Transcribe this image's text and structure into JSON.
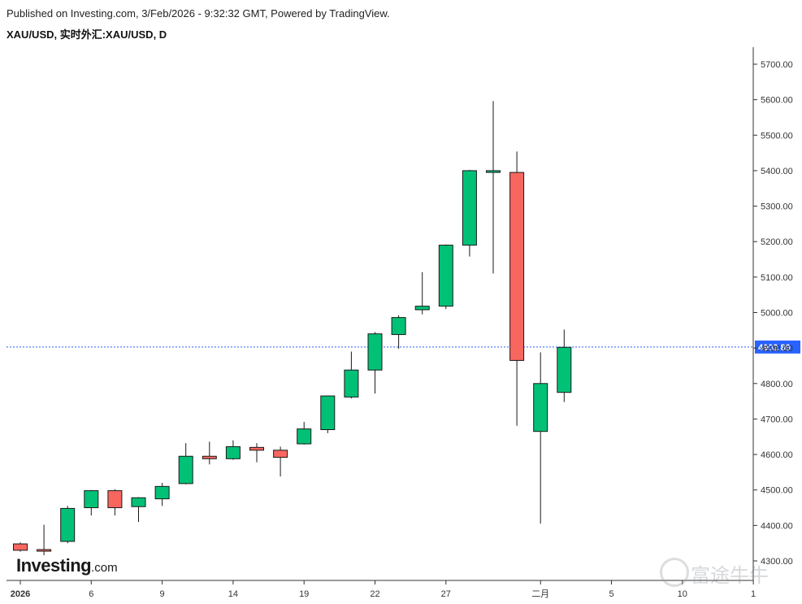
{
  "header": {
    "published": "Published on Investing.com, 3/Feb/2026 - 9:32:32 GMT, Powered by TradingView.",
    "symbol": "XAU/USD, 实时外汇:XAU/USD, D"
  },
  "logo": {
    "brand": "Investing",
    "suffix": ".com"
  },
  "watermark": {
    "text": "富途牛牛"
  },
  "chart_data": {
    "type": "candlestick",
    "y_axis": {
      "ticks": [
        4300,
        4400,
        4500,
        4600,
        4700,
        4800,
        4900,
        5000,
        5100,
        5200,
        5300,
        5400,
        5500,
        5600,
        5700
      ],
      "tick_labels": [
        "4300.00",
        "4400.00",
        "4500.00",
        "4600.00",
        "4700.00",
        "4800.00",
        "4900.00",
        "5000.00",
        "5100.00",
        "5200.00",
        "5300.00",
        "5400.00",
        "5500.00",
        "5600.00",
        "5700.00"
      ],
      "range": [
        4270,
        5780
      ]
    },
    "x_axis": {
      "labels": [
        {
          "text": "2026",
          "bar": 0,
          "bold": true
        },
        {
          "text": "6",
          "bar": 3
        },
        {
          "text": "9",
          "bar": 6
        },
        {
          "text": "14",
          "bar": 9
        },
        {
          "text": "19",
          "bar": 12
        },
        {
          "text": "22",
          "bar": 15
        },
        {
          "text": "27",
          "bar": 18
        },
        {
          "text": "二月",
          "bar": 22
        },
        {
          "text": "5",
          "bar": 25
        },
        {
          "text": "10",
          "bar": 28
        },
        {
          "text": "1",
          "bar": 31
        }
      ]
    },
    "current_price": {
      "value": 4902.89,
      "label": "4902.89",
      "color": "#2962ff"
    },
    "colors": {
      "down": "#f7675f",
      "up": "#00c176",
      "wick": "#1a1a1a"
    },
    "candles": [
      {
        "open": 4348,
        "high": 4352,
        "low": 4326,
        "close": 4330
      },
      {
        "open": 4332,
        "high": 4402,
        "low": 4316,
        "close": 4330
      },
      {
        "open": 4355,
        "high": 4455,
        "low": 4350,
        "close": 4448
      },
      {
        "open": 4450,
        "high": 4500,
        "low": 4428,
        "close": 4498
      },
      {
        "open": 4498,
        "high": 4502,
        "low": 4428,
        "close": 4450
      },
      {
        "open": 4453,
        "high": 4480,
        "low": 4410,
        "close": 4478
      },
      {
        "open": 4475,
        "high": 4520,
        "low": 4455,
        "close": 4510
      },
      {
        "open": 4518,
        "high": 4632,
        "low": 4516,
        "close": 4595
      },
      {
        "open": 4595,
        "high": 4636,
        "low": 4572,
        "close": 4588
      },
      {
        "open": 4588,
        "high": 4640,
        "low": 4585,
        "close": 4622
      },
      {
        "open": 4620,
        "high": 4632,
        "low": 4578,
        "close": 4612
      },
      {
        "open": 4612,
        "high": 4622,
        "low": 4538,
        "close": 4592
      },
      {
        "open": 4630,
        "high": 4692,
        "low": 4628,
        "close": 4672
      },
      {
        "open": 4670,
        "high": 4766,
        "low": 4660,
        "close": 4765
      },
      {
        "open": 4762,
        "high": 4890,
        "low": 4758,
        "close": 4838
      },
      {
        "open": 4838,
        "high": 4945,
        "low": 4772,
        "close": 4940
      },
      {
        "open": 4938,
        "high": 4992,
        "low": 4898,
        "close": 4986
      },
      {
        "open": 5008,
        "high": 5114,
        "low": 4995,
        "close": 5018
      },
      {
        "open": 5018,
        "high": 5192,
        "low": 5010,
        "close": 5190
      },
      {
        "open": 5190,
        "high": 5402,
        "low": 5158,
        "close": 5400
      },
      {
        "open": 5395,
        "high": 5596,
        "low": 5110,
        "close": 5400
      },
      {
        "open": 5395,
        "high": 5454,
        "low": 4681,
        "close": 4865
      },
      {
        "open": 4665,
        "high": 4888,
        "low": 4405,
        "close": 4800
      },
      {
        "open": 4775,
        "high": 4952,
        "low": 4748,
        "close": 4902
      }
    ]
  }
}
